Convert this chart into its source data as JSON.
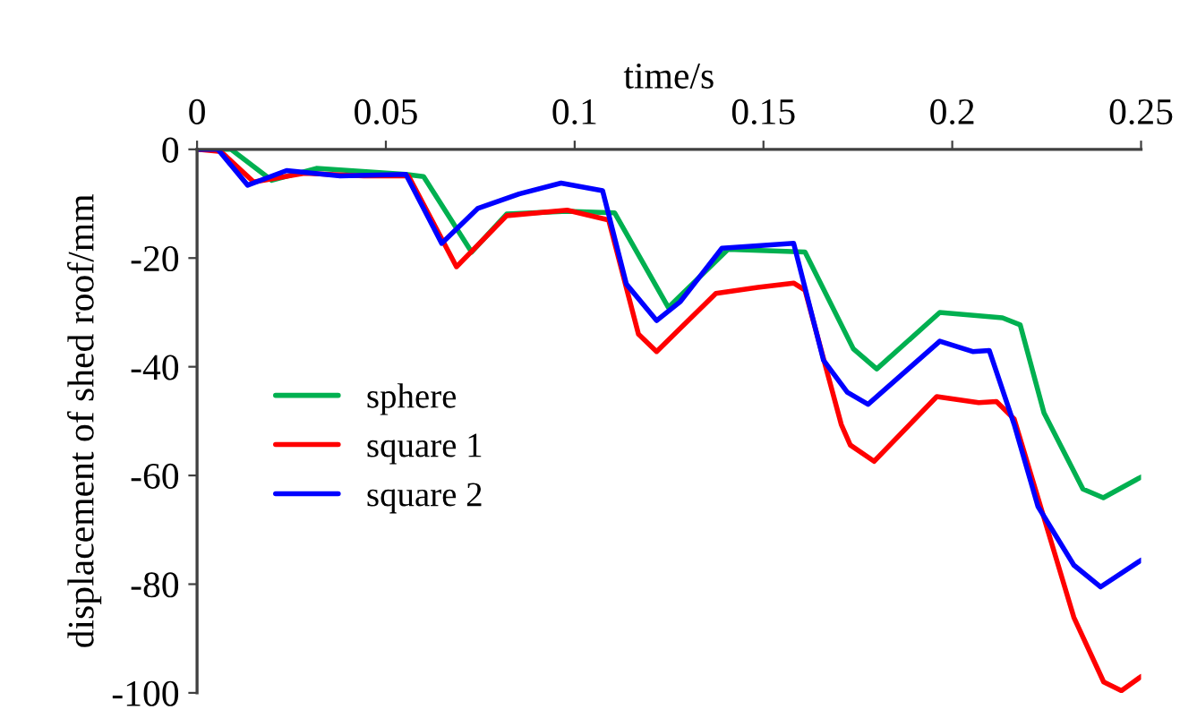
{
  "chart_data": {
    "type": "line",
    "xlabel": "time/s",
    "ylabel": "displacement of shed roof/mm",
    "xlim": [
      0,
      0.25
    ],
    "xticks": [
      0,
      0.05,
      0.1,
      0.15,
      0.2,
      0.25
    ],
    "ylim": [
      -100,
      0
    ],
    "yticks": [
      -100,
      -80,
      -60,
      -40,
      -20,
      0
    ],
    "grid": false,
    "legend": "left",
    "marker": "none",
    "line_style": "solid",
    "series": [
      {
        "name": "sphere",
        "color": "#00b050",
        "x": [
          0,
          0.009,
          0.0198,
          0.0316,
          0.0553,
          0.06,
          0.0727,
          0.082,
          0.098,
          0.1106,
          0.1248,
          0.1406,
          0.161,
          0.1738,
          0.18,
          0.1967,
          0.2133,
          0.218,
          0.2243,
          0.2346,
          0.24,
          0.25
        ],
        "values": [
          0,
          0,
          -5.7,
          -3.5,
          -4.6,
          -5,
          -18.9,
          -11.9,
          -11.4,
          -11.7,
          -29.1,
          -18.4,
          -18.9,
          -36.7,
          -40.4,
          -30,
          -31,
          -32.3,
          -48.5,
          -62.5,
          -64.1,
          -60.3
        ]
      },
      {
        "name": "square 1",
        "color": "#ff0000",
        "x": [
          0,
          0.0063,
          0.015,
          0.0284,
          0.0442,
          0.056,
          0.0687,
          0.082,
          0.098,
          0.109,
          0.1169,
          0.1217,
          0.1374,
          0.1485,
          0.158,
          0.161,
          0.1706,
          0.173,
          0.1793,
          0.1959,
          0.207,
          0.2117,
          0.2164,
          0.2243,
          0.2322,
          0.2401,
          0.2448,
          0.25
        ],
        "values": [
          0,
          -0.4,
          -6,
          -4.4,
          -4.9,
          -4.9,
          -21.6,
          -12.2,
          -11.2,
          -13,
          -34,
          -37.2,
          -26.5,
          -25.4,
          -24.6,
          -25.9,
          -50.6,
          -54.4,
          -57.4,
          -45.5,
          -46.6,
          -46.4,
          -49.6,
          -67.8,
          -86.1,
          -98,
          -99.6,
          -97
        ]
      },
      {
        "name": "square 2",
        "color": "#0000ff",
        "x": [
          0,
          0.0055,
          0.0134,
          0.0237,
          0.0379,
          0.0553,
          0.0648,
          0.0743,
          0.0853,
          0.0964,
          0.1074,
          0.1137,
          0.1217,
          0.128,
          0.139,
          0.158,
          0.1659,
          0.1722,
          0.1777,
          0.1967,
          0.2054,
          0.2098,
          0.2164,
          0.2227,
          0.2322,
          0.2393,
          0.25
        ],
        "values": [
          0,
          0,
          -6.6,
          -3.9,
          -4.9,
          -4.6,
          -17.3,
          -10.9,
          -8.2,
          -6.2,
          -7.6,
          -24.8,
          -31.5,
          -28,
          -18.2,
          -17.3,
          -38.8,
          -44.7,
          -46.9,
          -35.3,
          -37.2,
          -37,
          -50.6,
          -65.7,
          -76.5,
          -80.5,
          -75.6
        ]
      }
    ]
  }
}
